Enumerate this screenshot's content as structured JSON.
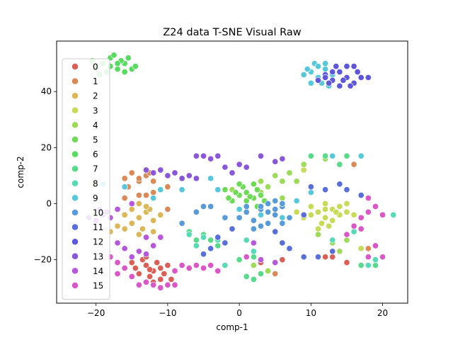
{
  "chart_data": {
    "type": "scatter",
    "title": "Z24 data T-SNE Visual Raw",
    "xlabel": "comp-1",
    "ylabel": "comp-2",
    "xlim": [
      -25.5,
      23.5
    ],
    "ylim": [
      -35.5,
      58
    ],
    "xticks": [
      -20,
      -10,
      0,
      10,
      20
    ],
    "yticks": [
      -20,
      0,
      20,
      40
    ],
    "xtick_labels": [
      "−20",
      "−10",
      "0",
      "10",
      "20"
    ],
    "ytick_labels": [
      "−20",
      "0",
      "20",
      "40"
    ],
    "legend": "top-left",
    "grid": false,
    "series": [
      {
        "name": "0",
        "color": "#db5f57",
        "points": [
          [
            -13,
            -22
          ],
          [
            -12,
            -24
          ],
          [
            -11,
            -23
          ],
          [
            -12.5,
            -26
          ],
          [
            -14,
            -25
          ],
          [
            -13.5,
            -20
          ],
          [
            -11.5,
            -21
          ],
          [
            -10.5,
            -25
          ],
          [
            -12,
            -28
          ],
          [
            -9.5,
            -27
          ],
          [
            -14.5,
            -23
          ],
          [
            -13,
            -19
          ],
          [
            -10,
            -22
          ],
          [
            -11,
            -27
          ],
          [
            -15,
            -21
          ],
          [
            -12.5,
            -23.5
          ],
          [
            13,
            -19
          ],
          [
            6,
            -20
          ],
          [
            9,
            -19
          ],
          [
            15,
            -21
          ],
          [
            3,
            -21
          ],
          [
            12,
            -19
          ]
        ]
      },
      {
        "name": "1",
        "color": "#db8a57",
        "points": [
          [
            -16,
            9
          ],
          [
            -15,
            11
          ],
          [
            -14,
            8
          ],
          [
            -13,
            10
          ],
          [
            -12.5,
            11
          ],
          [
            -15.5,
            6
          ],
          [
            -13,
            3
          ],
          [
            -14,
            3
          ],
          [
            -12,
            4
          ],
          [
            -16,
            2
          ],
          [
            -10,
            6
          ],
          [
            -10,
            -2
          ],
          [
            -12,
            8
          ],
          [
            4,
            -24
          ],
          [
            5,
            -25
          ],
          [
            16,
            14
          ],
          [
            18,
            -16
          ],
          [
            -14,
            9
          ]
        ]
      },
      {
        "name": "2",
        "color": "#dbb757",
        "points": [
          [
            -14,
            -5
          ],
          [
            -13,
            -3
          ],
          [
            -15,
            -7
          ],
          [
            -13.5,
            -9
          ],
          [
            -12,
            -6
          ],
          [
            -16,
            -4
          ],
          [
            -14,
            -11
          ],
          [
            -12.5,
            -2
          ],
          [
            -17,
            -8
          ],
          [
            -18,
            -10
          ],
          [
            -15,
            -2
          ],
          [
            -12,
            -10
          ],
          [
            -13,
            -1
          ],
          [
            -14,
            0
          ],
          [
            -11,
            -4
          ],
          [
            -16,
            -9
          ]
        ]
      },
      {
        "name": "3",
        "color": "#c8db57",
        "points": [
          [
            11,
            -3
          ],
          [
            12,
            -5
          ],
          [
            13,
            -2
          ],
          [
            14,
            -4
          ],
          [
            11.5,
            -7
          ],
          [
            13,
            -6
          ],
          [
            10,
            -4
          ],
          [
            12,
            0
          ],
          [
            14,
            -1
          ],
          [
            15,
            -3
          ],
          [
            12.5,
            -8
          ],
          [
            9,
            -5
          ],
          [
            16,
            -4
          ],
          [
            11,
            -9
          ],
          [
            8,
            -3
          ],
          [
            10,
            -1
          ],
          [
            13.5,
            -3
          ],
          [
            12,
            -2
          ],
          [
            4,
            -24
          ],
          [
            17,
            -16
          ],
          [
            9,
            12
          ],
          [
            15,
            0
          ]
        ]
      },
      {
        "name": "4",
        "color": "#9bdb57",
        "points": [
          [
            5,
            10
          ],
          [
            6,
            8
          ],
          [
            7,
            11
          ],
          [
            3,
            8
          ],
          [
            4,
            6
          ],
          [
            8,
            8
          ],
          [
            9,
            14
          ],
          [
            12,
            16
          ],
          [
            13,
            -14
          ],
          [
            15,
            -13
          ],
          [
            11,
            -11
          ],
          [
            14,
            -17
          ],
          [
            2,
            -22
          ],
          [
            4,
            -24
          ],
          [
            1,
            4
          ],
          [
            -1,
            5
          ],
          [
            3,
            4
          ],
          [
            6,
            2
          ]
        ]
      },
      {
        "name": "5",
        "color": "#6edb57",
        "points": [
          [
            0,
            3
          ],
          [
            1,
            4
          ],
          [
            2,
            2
          ],
          [
            0.5,
            6
          ],
          [
            2.5,
            5
          ],
          [
            -1,
            1
          ],
          [
            3,
            3
          ],
          [
            1,
            1
          ],
          [
            -0.5,
            4
          ],
          [
            2,
            7
          ],
          [
            1.5,
            2.5
          ],
          [
            -2,
            5
          ],
          [
            3.5,
            1
          ],
          [
            2.5,
            -1
          ],
          [
            -1.5,
            2
          ],
          [
            0,
            7
          ]
        ]
      },
      {
        "name": "6",
        "color": "#57db5f",
        "points": [
          [
            -19,
            50
          ],
          [
            -18,
            52
          ],
          [
            -17,
            48
          ],
          [
            -16,
            50
          ],
          [
            -15,
            48
          ],
          [
            -18.5,
            47
          ],
          [
            -20,
            49
          ],
          [
            -16.5,
            51
          ],
          [
            -17.5,
            53
          ],
          [
            -15.5,
            52
          ],
          [
            -19.5,
            46
          ],
          [
            -18,
            49
          ],
          [
            -16,
            47
          ],
          [
            -14.5,
            49
          ],
          [
            -20.5,
            51
          ],
          [
            -17,
            50
          ]
        ]
      },
      {
        "name": "7",
        "color": "#57db8a",
        "points": [
          [
            1,
            -26
          ],
          [
            2,
            -27
          ],
          [
            3,
            -25
          ],
          [
            -3,
            -15
          ],
          [
            -4,
            -13
          ],
          [
            2,
            -19
          ],
          [
            10,
            17
          ],
          [
            12,
            17
          ],
          [
            15,
            17
          ],
          [
            17,
            -22
          ],
          [
            19,
            -22
          ],
          [
            -6,
            -13
          ],
          [
            -5,
            -11
          ],
          [
            -7,
            -10
          ],
          [
            0,
            -20
          ],
          [
            14,
            14
          ]
        ]
      },
      {
        "name": "8",
        "color": "#57dbb7",
        "points": [
          [
            -3,
            -13
          ],
          [
            -5,
            -12
          ],
          [
            1,
            -13
          ],
          [
            2,
            -17
          ],
          [
            -2,
            -22
          ],
          [
            21.5,
            -4
          ],
          [
            19,
            -20
          ],
          [
            18,
            -22
          ],
          [
            -7,
            -11
          ],
          [
            -6,
            -15
          ],
          [
            13,
            -13
          ],
          [
            16,
            -10
          ]
        ]
      },
      {
        "name": "9",
        "color": "#57c8db",
        "points": [
          [
            10,
            47
          ],
          [
            11,
            45
          ],
          [
            12,
            48
          ],
          [
            10.5,
            50
          ],
          [
            9,
            46
          ],
          [
            11.5,
            43
          ],
          [
            13,
            46
          ],
          [
            12,
            50
          ],
          [
            10,
            43
          ],
          [
            11,
            49
          ],
          [
            12.5,
            42
          ],
          [
            9.5,
            48
          ],
          [
            -12,
            2
          ],
          [
            -11,
            5
          ],
          [
            -16,
            6
          ],
          [
            -19,
            7
          ],
          [
            -8,
            5
          ],
          [
            -4,
            9
          ],
          [
            3,
            -4
          ],
          [
            0,
            -2
          ],
          [
            8,
            1
          ],
          [
            10,
            4
          ],
          [
            17,
            17
          ],
          [
            13,
            17
          ],
          [
            6,
            -5
          ],
          [
            -3,
            5
          ]
        ]
      },
      {
        "name": "10",
        "color": "#579bdb",
        "points": [
          [
            1,
            -3
          ],
          [
            2,
            -6
          ],
          [
            4,
            -3
          ],
          [
            3,
            -2
          ],
          [
            5,
            -4
          ],
          [
            6,
            -1
          ],
          [
            0,
            -5
          ],
          [
            2,
            -9
          ],
          [
            4,
            -7
          ],
          [
            6,
            -7
          ],
          [
            5,
            1
          ],
          [
            3,
            -1
          ],
          [
            -4,
            -1
          ],
          [
            -6,
            -3
          ],
          [
            -5,
            -1
          ],
          [
            -2,
            -5
          ],
          [
            7,
            -5
          ],
          [
            3,
            -8
          ],
          [
            1,
            -1
          ],
          [
            -8,
            -7
          ],
          [
            5,
            -2
          ],
          [
            4,
            0
          ],
          [
            6,
            0
          ]
        ]
      },
      {
        "name": "11",
        "color": "#576edb",
        "points": [
          [
            -1,
            -9
          ],
          [
            -3,
            -12
          ],
          [
            -4,
            -16
          ],
          [
            -5,
            -18
          ],
          [
            -2,
            -14
          ],
          [
            7,
            -16
          ],
          [
            9,
            -19
          ],
          [
            11,
            -19
          ],
          [
            13,
            -17
          ],
          [
            10,
            6
          ],
          [
            12,
            5
          ],
          [
            15,
            5
          ],
          [
            14,
            7
          ],
          [
            17,
            3
          ],
          [
            9,
            -4
          ],
          [
            5,
            -10
          ],
          [
            6,
            -14
          ]
        ]
      },
      {
        "name": "12",
        "color": "#5f57db",
        "points": [
          [
            12,
            46
          ],
          [
            13,
            44
          ],
          [
            14,
            47
          ],
          [
            15,
            45
          ],
          [
            16,
            43
          ],
          [
            13.5,
            49
          ],
          [
            15,
            49
          ],
          [
            12.5,
            43
          ],
          [
            14,
            42
          ],
          [
            16.5,
            47
          ],
          [
            17,
            45
          ],
          [
            11,
            44
          ],
          [
            13,
            47
          ],
          [
            15.5,
            42
          ],
          [
            14.5,
            44
          ],
          [
            12,
            45
          ],
          [
            16,
            49
          ],
          [
            18,
            45
          ]
        ]
      },
      {
        "name": "13",
        "color": "#8a57db",
        "points": [
          [
            -12,
            11
          ],
          [
            -11,
            12
          ],
          [
            -10,
            10
          ],
          [
            -9,
            11
          ],
          [
            -5,
            17
          ],
          [
            -4,
            16
          ],
          [
            -3,
            17
          ],
          [
            -7,
            10
          ],
          [
            -6,
            9
          ],
          [
            -8,
            9
          ],
          [
            0,
            14
          ],
          [
            1,
            13
          ],
          [
            3,
            17
          ],
          [
            5,
            15
          ],
          [
            6,
            16
          ],
          [
            -2,
            13
          ],
          [
            -1,
            11
          ],
          [
            -13,
            12
          ],
          [
            -6,
            17
          ]
        ]
      },
      {
        "name": "14",
        "color": "#b757db",
        "points": [
          [
            -14,
            -17
          ],
          [
            -13,
            -18
          ],
          [
            -15,
            -19
          ],
          [
            -16,
            -16
          ],
          [
            -12,
            -15
          ],
          [
            -17,
            -14
          ],
          [
            -18,
            -5
          ],
          [
            -19,
            -4
          ],
          [
            -20,
            -6
          ],
          [
            -21,
            -5
          ],
          [
            -18.5,
            -3
          ],
          [
            -15,
            0
          ],
          [
            -17,
            -2
          ],
          [
            -13,
            -12
          ],
          [
            -11,
            -12
          ],
          [
            2,
            -14
          ],
          [
            3,
            -20
          ],
          [
            5,
            -21
          ],
          [
            -19.5,
            -2
          ]
        ]
      },
      {
        "name": "15",
        "color": "#db57c8",
        "points": [
          [
            -16,
            -23
          ],
          [
            -17,
            -21
          ],
          [
            -15,
            -26
          ],
          [
            -14,
            -29
          ],
          [
            -12,
            -29
          ],
          [
            -10,
            -29
          ],
          [
            -9,
            -24
          ],
          [
            -8,
            -22
          ],
          [
            -7,
            -23
          ],
          [
            -18,
            -19
          ],
          [
            -17,
            -25
          ],
          [
            -11,
            -30
          ],
          [
            -6,
            -22
          ],
          [
            -3,
            -24
          ],
          [
            -4,
            -22
          ],
          [
            16,
            -8
          ],
          [
            17,
            -5
          ],
          [
            18,
            -3
          ],
          [
            19,
            -1
          ],
          [
            20,
            -4
          ],
          [
            17,
            -9
          ],
          [
            18,
            2
          ],
          [
            15,
            -11
          ],
          [
            19,
            -15
          ],
          [
            18,
            -19
          ],
          [
            20,
            -19
          ],
          [
            1,
            -19
          ],
          [
            -9,
            -29
          ],
          [
            -5,
            -23
          ],
          [
            -13,
            -28
          ]
        ]
      }
    ]
  }
}
